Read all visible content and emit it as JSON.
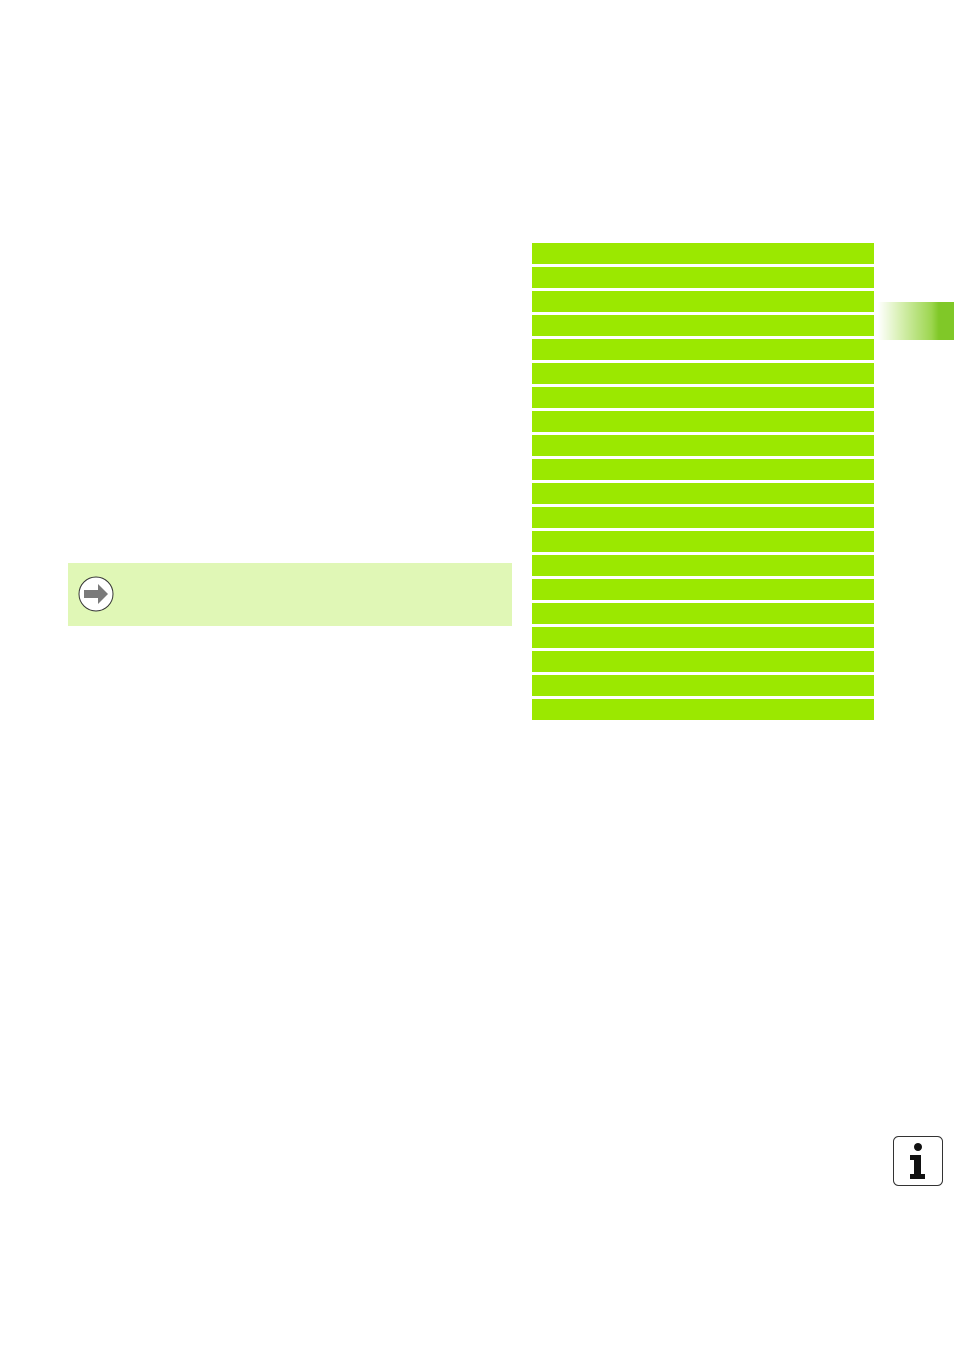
{
  "colors": {
    "table_row": "#9be800",
    "note_background": "#e0f7b6",
    "chapter_tab": "#80c828"
  },
  "table": {
    "row_count": 20
  },
  "note": {
    "icon": "arrow-right-circle-icon"
  },
  "footer": {
    "icon": "info-icon"
  }
}
